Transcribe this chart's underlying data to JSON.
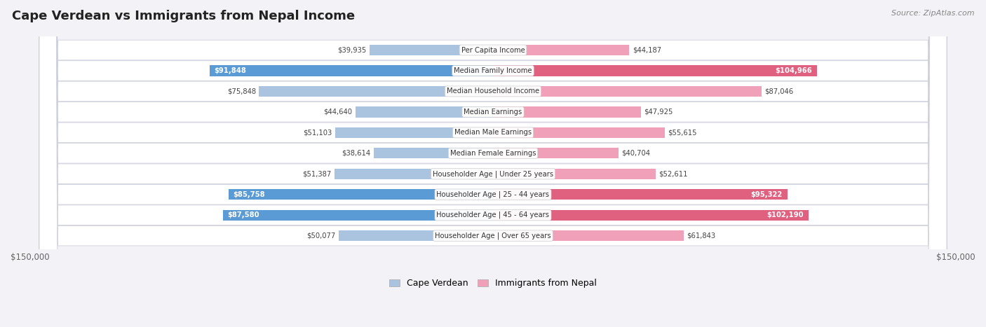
{
  "title": "Cape Verdean vs Immigrants from Nepal Income",
  "source": "Source: ZipAtlas.com",
  "categories": [
    "Per Capita Income",
    "Median Family Income",
    "Median Household Income",
    "Median Earnings",
    "Median Male Earnings",
    "Median Female Earnings",
    "Householder Age | Under 25 years",
    "Householder Age | 25 - 44 years",
    "Householder Age | 45 - 64 years",
    "Householder Age | Over 65 years"
  ],
  "cape_verdean": [
    39935,
    91848,
    75848,
    44640,
    51103,
    38614,
    51387,
    85758,
    87580,
    50077
  ],
  "nepal": [
    44187,
    104966,
    87046,
    47925,
    55615,
    40704,
    52611,
    95322,
    102190,
    61843
  ],
  "max_val": 150000,
  "blue_dark": "#5b9bd5",
  "blue_light": "#aac4e0",
  "pink_dark": "#e06080",
  "pink_light": "#f0a0b8",
  "bg_color": "#f2f2f7",
  "row_bg_white": "#ffffff",
  "row_bg_alt": "#f0f0f5",
  "bar_height": 0.52,
  "legend_blue": "Cape Verdean",
  "legend_pink": "Immigrants from Nepal",
  "dark_indices": [
    1,
    7,
    8
  ]
}
